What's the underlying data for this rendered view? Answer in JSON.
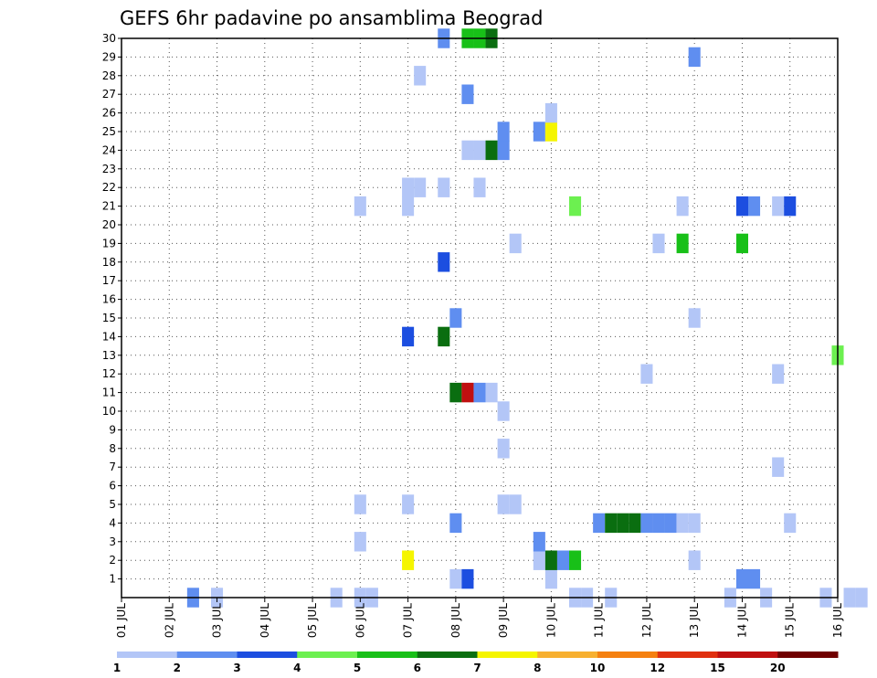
{
  "chart_data": {
    "type": "heatmap",
    "title": "GEFS 6hr padavine po ansamblima Beograd",
    "x_labels": [
      "01 JUL",
      "02 JUL",
      "03 JUL",
      "04 JUL",
      "05 JUL",
      "06 JUL",
      "07 JUL",
      "08 JUL",
      "09 JUL",
      "10 JUL",
      "11 JUL",
      "12 JUL",
      "13 JUL",
      "14 JUL",
      "15 JUL",
      "16 JUL"
    ],
    "y_labels": [
      "1",
      "2",
      "3",
      "4",
      "5",
      "6",
      "7",
      "8",
      "9",
      "10",
      "11",
      "12",
      "13",
      "14",
      "15",
      "16",
      "17",
      "18",
      "19",
      "20",
      "21",
      "22",
      "23",
      "24",
      "25",
      "26",
      "27",
      "28",
      "29",
      "30"
    ],
    "ylim": [
      0,
      30
    ],
    "grid": true,
    "colorbar": {
      "labels": [
        "1",
        "2",
        "3",
        "4",
        "5",
        "6",
        "7",
        "8",
        "10",
        "12",
        "15",
        "20"
      ],
      "colors": [
        "#b3c6f7",
        "#5f8ef0",
        "#1c4ee0",
        "#6cf050",
        "#18c018",
        "#0a6e10",
        "#f5f500",
        "#f7b030",
        "#f58010",
        "#e03010",
        "#c01010",
        "#700000"
      ]
    },
    "cells": [
      {
        "t": 6,
        "m": 0,
        "c": 1
      },
      {
        "t": 8,
        "m": 0,
        "c": 0
      },
      {
        "t": 18,
        "m": 0,
        "c": 0
      },
      {
        "t": 20,
        "m": 0,
        "c": 0
      },
      {
        "t": 21,
        "m": 0,
        "c": 0
      },
      {
        "t": 38,
        "m": 0,
        "c": 0
      },
      {
        "t": 39,
        "m": 0,
        "c": 0
      },
      {
        "t": 41,
        "m": 0,
        "c": 0
      },
      {
        "t": 51,
        "m": 0,
        "c": 0
      },
      {
        "t": 54,
        "m": 0,
        "c": 0
      },
      {
        "t": 59,
        "m": 0,
        "c": 0
      },
      {
        "t": 61,
        "m": 0,
        "c": 0
      },
      {
        "t": 62,
        "m": 0,
        "c": 0
      },
      {
        "t": 64,
        "m": 0,
        "c": 0
      },
      {
        "t": 66,
        "m": 0,
        "c": 0
      },
      {
        "t": 68,
        "m": 0,
        "c": 0
      },
      {
        "t": 69,
        "m": 0,
        "c": 0
      },
      {
        "t": 70,
        "m": 0,
        "c": 0
      },
      {
        "t": 75,
        "m": 0,
        "c": 0
      },
      {
        "t": 28,
        "m": 1,
        "c": 0
      },
      {
        "t": 29,
        "m": 1,
        "c": 2
      },
      {
        "t": 36,
        "m": 1,
        "c": 0
      },
      {
        "t": 52,
        "m": 1,
        "c": 1
      },
      {
        "t": 53,
        "m": 1,
        "c": 1
      },
      {
        "t": 24,
        "m": 2,
        "c": 6
      },
      {
        "t": 35,
        "m": 2,
        "c": 0
      },
      {
        "t": 36,
        "m": 2,
        "c": 5
      },
      {
        "t": 37,
        "m": 2,
        "c": 1
      },
      {
        "t": 38,
        "m": 2,
        "c": 4
      },
      {
        "t": 48,
        "m": 2,
        "c": 0
      },
      {
        "t": 20,
        "m": 3,
        "c": 0
      },
      {
        "t": 35,
        "m": 3,
        "c": 1
      },
      {
        "t": 28,
        "m": 4,
        "c": 1
      },
      {
        "t": 40,
        "m": 4,
        "c": 1
      },
      {
        "t": 41,
        "m": 4,
        "c": 5
      },
      {
        "t": 42,
        "m": 4,
        "c": 5
      },
      {
        "t": 43,
        "m": 4,
        "c": 5
      },
      {
        "t": 44,
        "m": 4,
        "c": 1
      },
      {
        "t": 45,
        "m": 4,
        "c": 1
      },
      {
        "t": 46,
        "m": 4,
        "c": 1
      },
      {
        "t": 47,
        "m": 4,
        "c": 0
      },
      {
        "t": 48,
        "m": 4,
        "c": 0
      },
      {
        "t": 56,
        "m": 4,
        "c": 0
      },
      {
        "t": 20,
        "m": 5,
        "c": 0
      },
      {
        "t": 24,
        "m": 5,
        "c": 0
      },
      {
        "t": 32,
        "m": 5,
        "c": 0
      },
      {
        "t": 33,
        "m": 5,
        "c": 0
      },
      {
        "t": 55,
        "m": 7,
        "c": 0
      },
      {
        "t": 32,
        "m": 8,
        "c": 0
      },
      {
        "t": 32,
        "m": 10,
        "c": 0
      },
      {
        "t": 28,
        "m": 11,
        "c": 5
      },
      {
        "t": 29,
        "m": 11,
        "c": 10
      },
      {
        "t": 30,
        "m": 11,
        "c": 1
      },
      {
        "t": 31,
        "m": 11,
        "c": 0
      },
      {
        "t": 44,
        "m": 12,
        "c": 0
      },
      {
        "t": 55,
        "m": 12,
        "c": 0
      },
      {
        "t": 60,
        "m": 13,
        "c": 3
      },
      {
        "t": 24,
        "m": 14,
        "c": 2
      },
      {
        "t": 27,
        "m": 14,
        "c": 5
      },
      {
        "t": 28,
        "m": 15,
        "c": 1
      },
      {
        "t": 48,
        "m": 15,
        "c": 0
      },
      {
        "t": 27,
        "m": 18,
        "c": 2
      },
      {
        "t": 33,
        "m": 19,
        "c": 0
      },
      {
        "t": 45,
        "m": 19,
        "c": 0
      },
      {
        "t": 47,
        "m": 19,
        "c": 4
      },
      {
        "t": 52,
        "m": 19,
        "c": 4
      },
      {
        "t": 20,
        "m": 21,
        "c": 0
      },
      {
        "t": 24,
        "m": 21,
        "c": 0
      },
      {
        "t": 38,
        "m": 21,
        "c": 3
      },
      {
        "t": 47,
        "m": 21,
        "c": 0
      },
      {
        "t": 52,
        "m": 21,
        "c": 2
      },
      {
        "t": 53,
        "m": 21,
        "c": 1
      },
      {
        "t": 55,
        "m": 21,
        "c": 0
      },
      {
        "t": 56,
        "m": 21,
        "c": 2
      },
      {
        "t": 24,
        "m": 22,
        "c": 0
      },
      {
        "t": 25,
        "m": 22,
        "c": 0
      },
      {
        "t": 27,
        "m": 22,
        "c": 0
      },
      {
        "t": 30,
        "m": 22,
        "c": 0
      },
      {
        "t": 29,
        "m": 24,
        "c": 0
      },
      {
        "t": 30,
        "m": 24,
        "c": 0
      },
      {
        "t": 31,
        "m": 24,
        "c": 5
      },
      {
        "t": 32,
        "m": 24,
        "c": 1
      },
      {
        "t": 32,
        "m": 25,
        "c": 1
      },
      {
        "t": 35,
        "m": 25,
        "c": 1
      },
      {
        "t": 36,
        "m": 25,
        "c": 6
      },
      {
        "t": 36,
        "m": 26,
        "c": 0
      },
      {
        "t": 29,
        "m": 27,
        "c": 1
      },
      {
        "t": 25,
        "m": 28,
        "c": 0
      },
      {
        "t": 48,
        "m": 29,
        "c": 1
      },
      {
        "t": 27,
        "m": 30,
        "c": 1
      },
      {
        "t": 29,
        "m": 30,
        "c": 4
      },
      {
        "t": 30,
        "m": 30,
        "c": 4
      },
      {
        "t": 31,
        "m": 30,
        "c": 5
      }
    ]
  }
}
